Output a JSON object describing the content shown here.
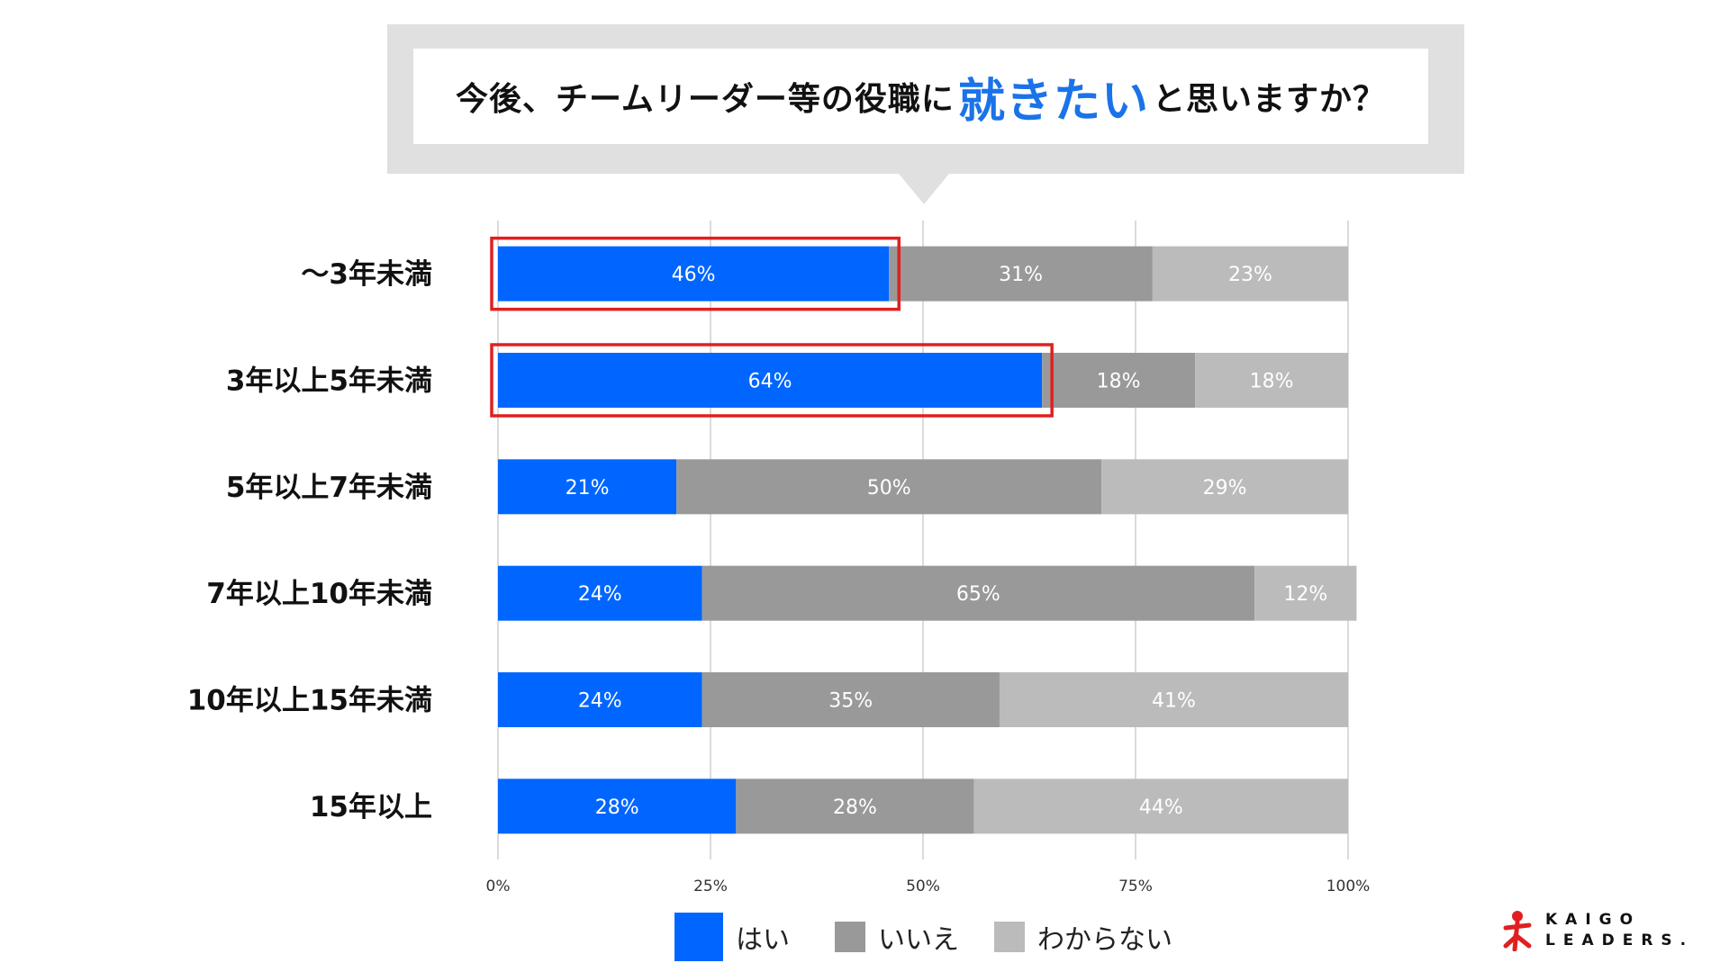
{
  "title": {
    "prefix": "今後、チームリーダー等の役職に",
    "emphasis": "就きたい",
    "suffix": "と思いますか？"
  },
  "chart_data": {
    "type": "bar",
    "orientation": "horizontal",
    "stacked": true,
    "categories": [
      "～3年未満",
      "3年以上5年未満",
      "5年以上7年未満",
      "7年以上10年未満",
      "10年以上15年未満",
      "15年以上"
    ],
    "series": [
      {
        "name": "はい",
        "values": [
          46,
          64,
          21,
          24,
          24,
          28
        ],
        "labels": [
          "46%",
          "64%",
          "21%",
          "24%",
          "24%",
          "28%"
        ],
        "color": "#0066ff"
      },
      {
        "name": "いいえ",
        "values": [
          31,
          18,
          50,
          65,
          35,
          28
        ],
        "labels": [
          "31%",
          "18%",
          "50%",
          "65%",
          "35%",
          "28%"
        ],
        "color": "#999999"
      },
      {
        "name": "わからない",
        "values": [
          23,
          18,
          29,
          12,
          41,
          44
        ],
        "labels": [
          "23%",
          "18%",
          "29%",
          "12%",
          "41%",
          "44%"
        ],
        "color": "#bbbbbb"
      }
    ],
    "xlim": [
      0,
      100
    ],
    "xticks": [
      "0%",
      "25%",
      "50%",
      "75%",
      "100%"
    ],
    "grid": true,
    "legend_position": "bottom",
    "highlighted_categories": [
      "～3年未満",
      "3年以上5年未満"
    ],
    "highlight_color": "#e02020"
  },
  "logo": {
    "line1": "KAIGO",
    "line2": "LEADERS."
  }
}
